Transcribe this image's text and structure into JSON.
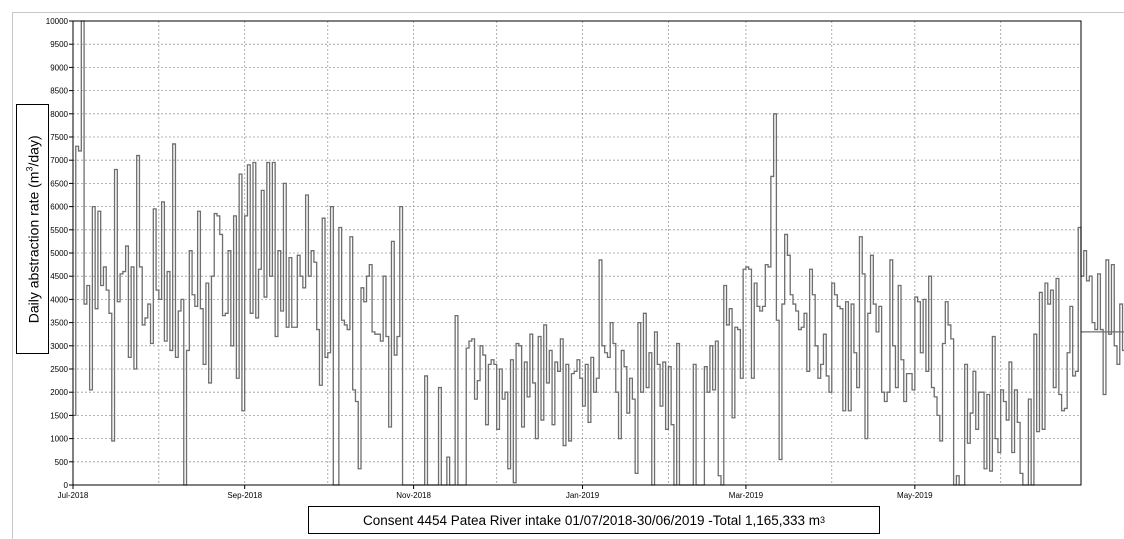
{
  "chart_data": {
    "type": "line",
    "title_text": "Consent 4454 Patea River intake 01/07/2018-30/06/2019 -Total 1,165,333 m",
    "title_sup": "3",
    "ylabel_text": "Daily abstraction rate (m",
    "ylabel_sup": "3",
    "ylabel_end": "/day)",
    "xlabel": "",
    "ylim": [
      0,
      10000
    ],
    "xlim": [
      "2018-07-01",
      "2019-06-30"
    ],
    "yticks": [
      "0",
      "500",
      "1000",
      "1500",
      "2000",
      "2500",
      "3000",
      "3500",
      "4000",
      "4500",
      "5000",
      "5500",
      "6000",
      "6500",
      "7000",
      "7500",
      "8000",
      "8500",
      "9000",
      "9500",
      "10000"
    ],
    "xticks": [
      {
        "label": "Jul-2018",
        "date": "2018-07-01"
      },
      {
        "label": "Sep-2018",
        "date": "2018-09-01"
      },
      {
        "label": "Nov-2018",
        "date": "2018-11-01"
      },
      {
        "label": "Jan-2019",
        "date": "2019-01-01"
      },
      {
        "label": "Mar-2019",
        "date": "2019-03-01"
      },
      {
        "label": "May-2019",
        "date": "2019-05-01"
      }
    ],
    "grid": true,
    "step": true,
    "series": [
      {
        "color": "#6e6e6e",
        "values": [
          1500,
          7300,
          7200,
          10000,
          3900,
          4300,
          2050,
          6000,
          3800,
          5900,
          4300,
          4700,
          4200,
          3700,
          950,
          6800,
          3950,
          4550,
          4600,
          5150,
          2750,
          4700,
          2500,
          7100,
          4700,
          3450,
          3600,
          3900,
          3050,
          5950,
          4200,
          4000,
          6100,
          3100,
          4600,
          2900,
          7350,
          2750,
          3750,
          4000,
          0,
          2900,
          5050,
          4100,
          3850,
          5900,
          3800,
          2600,
          4350,
          2200,
          4500,
          5850,
          5800,
          5400,
          3650,
          3700,
          5050,
          3000,
          5800,
          2300,
          6700,
          1600,
          5800,
          6900,
          3700,
          6950,
          3600,
          4650,
          6350,
          4050,
          6950,
          4500,
          6950,
          3200,
          5050,
          3750,
          6500,
          3400,
          4900,
          3400,
          3400,
          4950,
          4500,
          4250,
          6250,
          4500,
          5050,
          4800,
          3350,
          2150,
          5750,
          2750,
          2850,
          6000,
          0,
          0,
          5550,
          3550,
          3450,
          3350,
          5350,
          2050,
          1800,
          350,
          4250,
          3950,
          4500,
          4750,
          3300,
          3250,
          3250,
          3100,
          4500,
          3200,
          1250,
          5250,
          2800,
          3200,
          6000,
          0,
          0,
          0,
          0,
          0,
          0,
          0,
          0,
          2350,
          0,
          0,
          0,
          0,
          2100,
          0,
          0,
          600,
          0,
          0,
          3650,
          0,
          0,
          0,
          2950,
          3100,
          3150,
          1850,
          2250,
          3000,
          2800,
          1300,
          2600,
          2700,
          2600,
          1200,
          2500,
          1850,
          2000,
          350,
          2700,
          50,
          3050,
          3000,
          1250,
          2650,
          1900,
          3250,
          2200,
          1000,
          3200,
          1400,
          3450,
          2200,
          2900,
          1300,
          2650,
          2450,
          3150,
          850,
          2600,
          950,
          2400,
          2450,
          2700,
          2300,
          1700,
          2600,
          1350,
          2750,
          2000,
          2300,
          4850,
          3000,
          2850,
          2750,
          3500,
          3050,
          2000,
          1000,
          2900,
          2550,
          1550,
          2300,
          1850,
          250,
          3500,
          2000,
          3700,
          2100,
          2850,
          0,
          3300,
          2600,
          1700,
          2650,
          1200,
          2550,
          1300,
          0,
          3050,
          0,
          0,
          0,
          0,
          0,
          2600,
          0,
          0,
          0,
          2550,
          2000,
          3000,
          2050,
          3100,
          200,
          0,
          4300,
          3450,
          3800,
          1450,
          3400,
          3350,
          2300,
          4650,
          4700,
          4650,
          2300,
          4350,
          3850,
          3750,
          3850,
          4750,
          4700,
          6650,
          8000,
          3550,
          550,
          3900,
          5400,
          4950,
          4100,
          3900,
          3750,
          3350,
          3400,
          3700,
          2450,
          4650,
          4100,
          3000,
          2300,
          2600,
          3250,
          2350,
          2000,
          4350,
          4100,
          3850,
          3800,
          1600,
          3950,
          1600,
          3900,
          2850,
          2100,
          5350,
          4550,
          1000,
          3700,
          4950,
          3900,
          3300,
          3850,
          2000,
          1800,
          2000,
          4850,
          3000,
          2100,
          4300,
          2700,
          1800,
          2400,
          2400,
          2050,
          4050,
          3950,
          2850,
          4000,
          2450,
          4500,
          2100,
          1900,
          1500,
          950,
          3050,
          3950,
          3450,
          3150,
          0,
          200,
          0,
          0,
          2600,
          900,
          1550,
          2450,
          1200,
          2000,
          2000,
          350,
          1950,
          300,
          3200,
          1000,
          700,
          2050,
          1800,
          1400,
          2650,
          700,
          2050,
          1350,
          250,
          0,
          0,
          1850,
          0,
          3250,
          1150,
          4150,
          1200,
          4350,
          3900,
          4200,
          2100,
          4450,
          1950,
          1600,
          1650,
          2850,
          3850,
          2350,
          2450,
          5550,
          4500,
          5050,
          4400,
          4500,
          3500,
          3350,
          4550,
          3350,
          1950,
          4850,
          3250,
          4750,
          3000,
          2600,
          3900,
          2900,
          4050,
          4500,
          2500,
          3450,
          2500,
          2200,
          2900,
          4050,
          3150,
          3300,
          3300,
          3350,
          3000,
          2800,
          3200,
          3450,
          3200,
          4600,
          3550,
          4150,
          2250,
          3850,
          2300,
          2950,
          3600,
          3600,
          3700,
          4050,
          2900,
          2800,
          2800,
          2650,
          2700,
          2650,
          2750,
          4700,
          4900,
          3200,
          3600,
          4200,
          3750,
          2800,
          5000,
          4350,
          4200,
          4500,
          4000,
          3550,
          2700,
          3450,
          3300,
          2650,
          3700,
          5200,
          4300,
          1750,
          3800,
          2000,
          1600,
          4200,
          4250,
          500,
          3150,
          3850,
          3850,
          3850,
          4100,
          5100,
          2900,
          3700,
          3900,
          4350,
          3800,
          2350,
          2500,
          6400,
          2650,
          4500,
          3650,
          3350,
          4000,
          4500,
          3250,
          4000,
          2650,
          3500,
          3100,
          3250,
          4550,
          3300,
          2600,
          2300,
          3050,
          5750,
          4850,
          3850,
          2900,
          3200,
          3750,
          5950,
          3650,
          3100,
          5500,
          5900,
          5650,
          4850,
          5650,
          5550,
          3950,
          6650,
          4200,
          5450,
          7550,
          4850,
          3300
        ]
      }
    ]
  }
}
